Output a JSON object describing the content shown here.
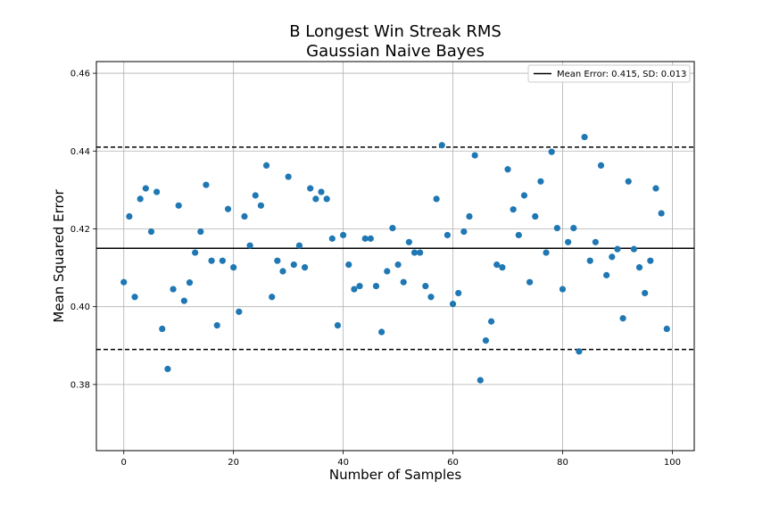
{
  "chart_data": {
    "type": "scatter",
    "title": "B Longest Win Streak RMS",
    "subtitle": "Gaussian Naive Bayes",
    "xlabel": "Number of Samples",
    "ylabel": "Mean Squared Error",
    "xlim": [
      -5,
      104
    ],
    "ylim": [
      0.363,
      0.463
    ],
    "xticks": [
      0,
      20,
      40,
      60,
      80,
      100
    ],
    "yticks": [
      0.38,
      0.4,
      0.42,
      0.44,
      0.46
    ],
    "xtick_labels": [
      "0",
      "20",
      "40",
      "60",
      "80",
      "100"
    ],
    "ytick_labels": [
      "0.38",
      "0.40",
      "0.42",
      "0.44",
      "0.46"
    ],
    "grid": true,
    "legend": {
      "placement": "top-right",
      "entries": [
        "Mean Error: 0.415, SD: 0.013"
      ]
    },
    "mean": 0.415,
    "sd": 0.013,
    "upper_band": 0.441,
    "lower_band": 0.389,
    "point_color": "#1f77b4",
    "series": [
      {
        "x": [
          0,
          1,
          2,
          3,
          4,
          5,
          6,
          7,
          8,
          9,
          10,
          11,
          12,
          13,
          14,
          15,
          16,
          17,
          18,
          19,
          20,
          21,
          22,
          23,
          24,
          25,
          26,
          27,
          28,
          29,
          30,
          31,
          32,
          33,
          34,
          35,
          36,
          37,
          38,
          39,
          40,
          41,
          42,
          43,
          44,
          45,
          46,
          47,
          48,
          49,
          50,
          51,
          52,
          53,
          54,
          55,
          56,
          57,
          58,
          59,
          60,
          61,
          62,
          63,
          64,
          65,
          66,
          67,
          68,
          69,
          70,
          71,
          72,
          73,
          74,
          75,
          76,
          77,
          78,
          79,
          80,
          81,
          82,
          83,
          84,
          85,
          86,
          87,
          88,
          89,
          90,
          91,
          92,
          93,
          94,
          95,
          96,
          97,
          98,
          99
        ],
        "y": [
          0.4063,
          0.4232,
          0.4025,
          0.4277,
          0.4304,
          0.4193,
          0.4295,
          0.3943,
          0.384,
          0.4045,
          0.426,
          0.4015,
          0.4062,
          0.4139,
          0.4193,
          0.4313,
          0.4118,
          0.3952,
          0.4118,
          0.4251,
          0.4101,
          0.3987,
          0.4232,
          0.4157,
          0.4286,
          0.426,
          0.4363,
          0.4025,
          0.4118,
          0.4091,
          0.4334,
          0.4108,
          0.4157,
          0.4101,
          0.4304,
          0.4277,
          0.4295,
          0.4277,
          0.4175,
          0.3952,
          0.4184,
          0.4108,
          0.4045,
          0.4053,
          0.4175,
          0.4175,
          0.4053,
          0.3935,
          0.4091,
          0.4202,
          0.4108,
          0.4063,
          0.4166,
          0.4139,
          0.4139,
          0.4053,
          0.4025,
          0.4277,
          0.4415,
          0.4184,
          0.4007,
          0.4035,
          0.4193,
          0.4232,
          0.4389,
          0.3811,
          0.3913,
          0.3962,
          0.4108,
          0.4101,
          0.4353,
          0.425,
          0.4184,
          0.4286,
          0.4063,
          0.4232,
          0.4322,
          0.4139,
          0.4398,
          0.4202,
          0.4045,
          0.4166,
          0.4202,
          0.3885,
          0.4436,
          0.4118,
          0.4166,
          0.4363,
          0.4081,
          0.4128,
          0.4148,
          0.397,
          0.4322,
          0.4148,
          0.4101,
          0.4035,
          0.4118,
          0.4304,
          0.424,
          0.3943
        ]
      }
    ]
  }
}
